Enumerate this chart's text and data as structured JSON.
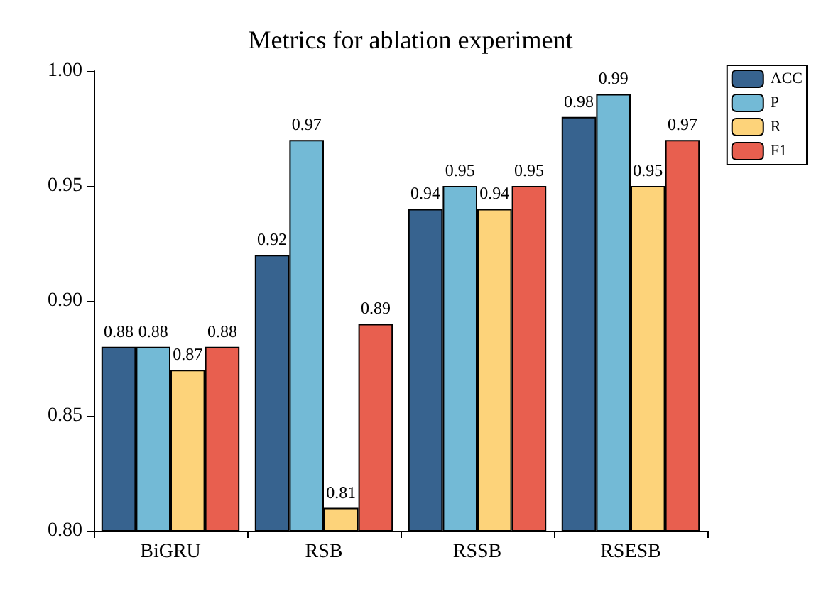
{
  "chart_data": {
    "type": "bar",
    "title": "Metrics for ablation experiment",
    "categories": [
      "BiGRU",
      "RSB",
      "RSSB",
      "RSESB"
    ],
    "series": [
      {
        "name": "ACC",
        "color": "#37638f",
        "values": [
          0.88,
          0.92,
          0.94,
          0.98
        ]
      },
      {
        "name": "P",
        "color": "#73bad6",
        "values": [
          0.88,
          0.97,
          0.95,
          0.99
        ]
      },
      {
        "name": "R",
        "color": "#fdd37a",
        "values": [
          0.87,
          0.81,
          0.94,
          0.95
        ]
      },
      {
        "name": "F1",
        "color": "#e85f4f",
        "values": [
          0.88,
          0.89,
          0.95,
          0.97
        ]
      }
    ],
    "ylim": [
      0.8,
      1.0
    ],
    "yticks": [
      {
        "value": 0.8,
        "label": "0.80"
      },
      {
        "value": 0.85,
        "label": "0.85"
      },
      {
        "value": 0.9,
        "label": "0.90"
      },
      {
        "value": 0.95,
        "label": "0.95"
      },
      {
        "value": 1.0,
        "label": "1.00"
      }
    ],
    "data_labels": true,
    "grid": false,
    "legend": "top right"
  }
}
